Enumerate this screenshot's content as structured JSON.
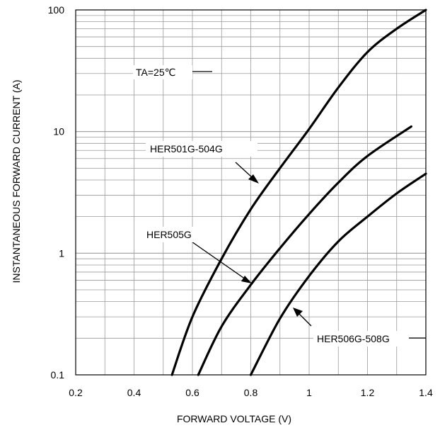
{
  "chart_data": {
    "type": "line",
    "xlabel": "FORWARD VOLTAGE (V)",
    "ylabel": "INSTANTANEOUS FORWARD CURRENT (A)",
    "xlim": [
      0.2,
      1.4
    ],
    "ylim": [
      0.1,
      100
    ],
    "y_scale": "log",
    "grid": true,
    "x_ticks": [
      "0.2",
      "0.4",
      "0.6",
      "0.8",
      "1",
      "1.2",
      "1.4"
    ],
    "y_ticks": [
      "0.1",
      "1",
      "10",
      "100"
    ],
    "condition_label": "TA=25℃",
    "series": [
      {
        "name": "HER501G-504G",
        "x": [
          0.53,
          0.6,
          0.7,
          0.8,
          0.9,
          1.0,
          1.1,
          1.2,
          1.3,
          1.4
        ],
        "y": [
          0.1,
          0.3,
          0.9,
          2.3,
          5.0,
          10.5,
          23,
          45,
          70,
          100
        ]
      },
      {
        "name": "HER505G",
        "x": [
          0.62,
          0.7,
          0.8,
          0.9,
          1.0,
          1.1,
          1.2,
          1.35
        ],
        "y": [
          0.1,
          0.25,
          0.55,
          1.1,
          2.1,
          3.8,
          6.3,
          11.0
        ]
      },
      {
        "name": "HER506G-508G",
        "x": [
          0.8,
          0.9,
          1.0,
          1.1,
          1.2,
          1.3,
          1.4
        ],
        "y": [
          0.1,
          0.29,
          0.65,
          1.25,
          2.0,
          3.1,
          4.5
        ]
      }
    ]
  }
}
